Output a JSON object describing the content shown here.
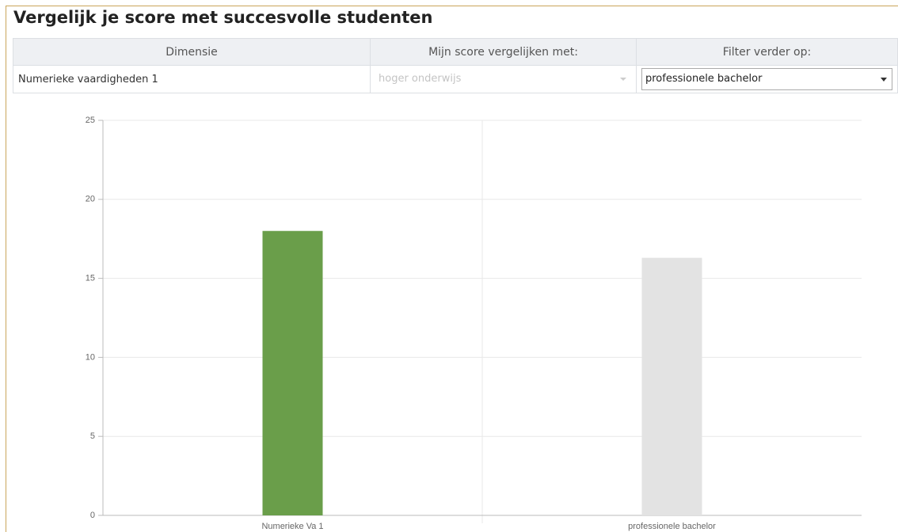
{
  "header": {
    "title": "Vergelijk je score met succesvolle studenten"
  },
  "table": {
    "columns": [
      "Dimensie",
      "Mijn score vergelijken met:",
      "Filter verder op:"
    ],
    "rows": [
      [
        "Numerieke vaardigheden 1",
        "hoger onderwijs",
        "professionele bachelor"
      ]
    ]
  },
  "chart_data": {
    "type": "bar",
    "categories": [
      "Numerieke Va 1",
      "professionele bachelor"
    ],
    "values": [
      18,
      16.3
    ],
    "colors": [
      "#6a9e4a",
      "#e3e3e3"
    ],
    "ylim": [
      0,
      25
    ],
    "yticks": [
      0,
      5,
      10,
      15,
      20,
      25
    ],
    "grid": true
  }
}
